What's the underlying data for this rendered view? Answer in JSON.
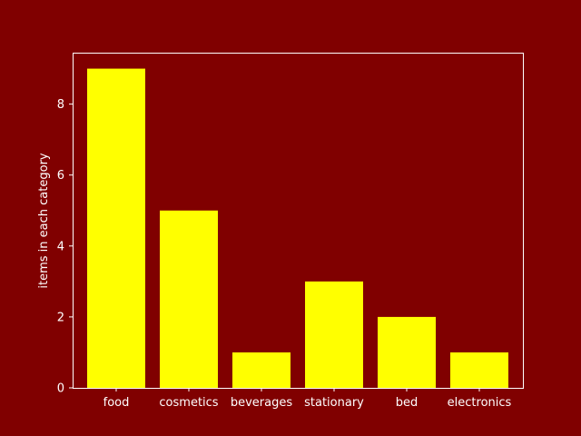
{
  "chart_data": {
    "type": "bar",
    "categories": [
      "food",
      "cosmetics",
      "beverages",
      "stationary",
      "bed",
      "electronics"
    ],
    "values": [
      9,
      5,
      1,
      3,
      2,
      1
    ],
    "title": "",
    "xlabel": "",
    "ylabel": "items in each category",
    "ylim": [
      0,
      9.45
    ],
    "yticks": [
      0,
      2,
      4,
      6,
      8
    ],
    "grid": false,
    "colors": {
      "background": "#800000",
      "bar": "#ffff00",
      "axes": "#ffffff",
      "text": "#ffffff"
    }
  }
}
